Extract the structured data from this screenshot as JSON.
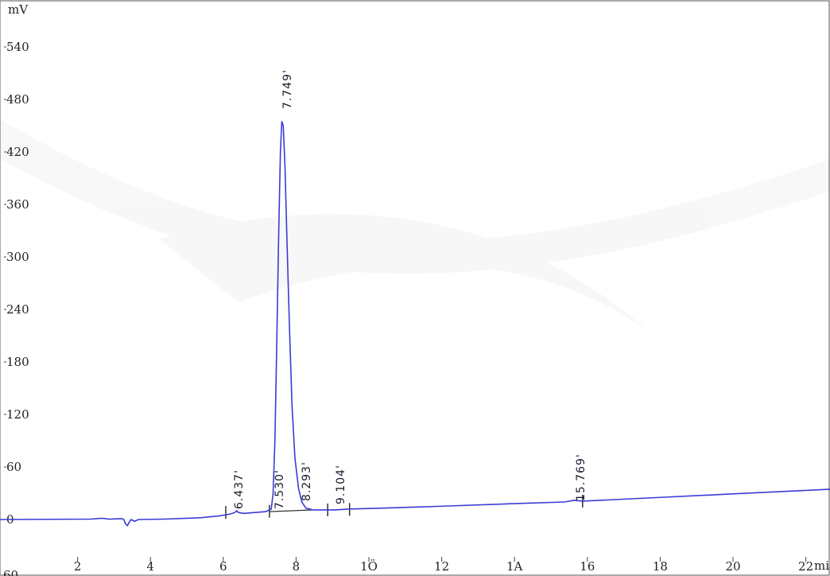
{
  "chart_data": {
    "type": "line",
    "title": "",
    "ylabel": "mV",
    "xlabel": "mi",
    "xlim": [
      0,
      23.5
    ],
    "ylim": [
      -60,
      545
    ],
    "x_ticks": [
      2,
      4,
      6,
      8,
      10,
      12,
      14,
      16,
      18,
      20,
      22
    ],
    "x_tick_labels": [
      "2",
      "4",
      "6",
      "8",
      "1Ö",
      "12",
      "1A",
      "16",
      "18",
      "20",
      "22"
    ],
    "y_ticks": [
      540,
      480,
      420,
      360,
      300,
      240,
      180,
      120,
      60,
      0
    ],
    "y_tick_labels": [
      "540",
      "480",
      "420",
      "360",
      "300",
      "240",
      "180",
      "120",
      "60",
      "0"
    ],
    "y_bottom_partial_label": "60",
    "grid": false,
    "series": [
      {
        "color": "#3a3ad6",
        "points": [
          [
            0,
            0
          ],
          [
            2.5,
            0.5
          ],
          [
            2.8,
            1.5
          ],
          [
            3.0,
            0.5
          ],
          [
            3.35,
            1
          ],
          [
            3.4,
            0
          ],
          [
            3.45,
            -5
          ],
          [
            3.5,
            -7
          ],
          [
            3.55,
            -3
          ],
          [
            3.6,
            0
          ],
          [
            3.7,
            -2
          ],
          [
            3.8,
            0
          ],
          [
            4.5,
            0.5
          ],
          [
            5.5,
            2
          ],
          [
            6.0,
            4
          ],
          [
            6.3,
            6
          ],
          [
            6.45,
            8
          ],
          [
            6.5,
            10
          ],
          [
            6.55,
            8
          ],
          [
            6.7,
            7
          ],
          [
            7.0,
            8
          ],
          [
            7.3,
            9
          ],
          [
            7.45,
            12
          ],
          [
            7.5,
            30
          ],
          [
            7.55,
            90
          ],
          [
            7.6,
            200
          ],
          [
            7.65,
            320
          ],
          [
            7.7,
            420
          ],
          [
            7.74,
            455
          ],
          [
            7.78,
            450
          ],
          [
            7.83,
            400
          ],
          [
            7.88,
            320
          ],
          [
            7.95,
            220
          ],
          [
            8.02,
            130
          ],
          [
            8.1,
            70
          ],
          [
            8.2,
            35
          ],
          [
            8.29,
            20
          ],
          [
            8.4,
            13
          ],
          [
            8.6,
            11
          ],
          [
            9.0,
            11
          ],
          [
            9.2,
            11
          ],
          [
            9.6,
            12
          ],
          [
            10.5,
            13
          ],
          [
            12,
            15
          ],
          [
            14,
            18
          ],
          [
            15.5,
            20
          ],
          [
            15.77,
            22
          ],
          [
            16.0,
            21
          ],
          [
            18,
            25
          ],
          [
            20,
            29
          ],
          [
            22,
            33
          ],
          [
            23.5,
            36
          ]
        ]
      }
    ],
    "peaks": [
      {
        "retention_time": 6.437,
        "label": "6.437'"
      },
      {
        "retention_time": 7.53,
        "label": "7.530'"
      },
      {
        "retention_time": 7.749,
        "label": "7.749'"
      },
      {
        "retention_time": 8.293,
        "label": "8.293'"
      },
      {
        "retention_time": 9.104,
        "label": "9.104'"
      },
      {
        "retention_time": 15.769,
        "label": "15.769'"
      }
    ],
    "baseline_markers": [
      6.2,
      7.4,
      9.0,
      9.6,
      16.0
    ],
    "baseline_segment": {
      "from": 7.4,
      "to": 8.6
    }
  }
}
